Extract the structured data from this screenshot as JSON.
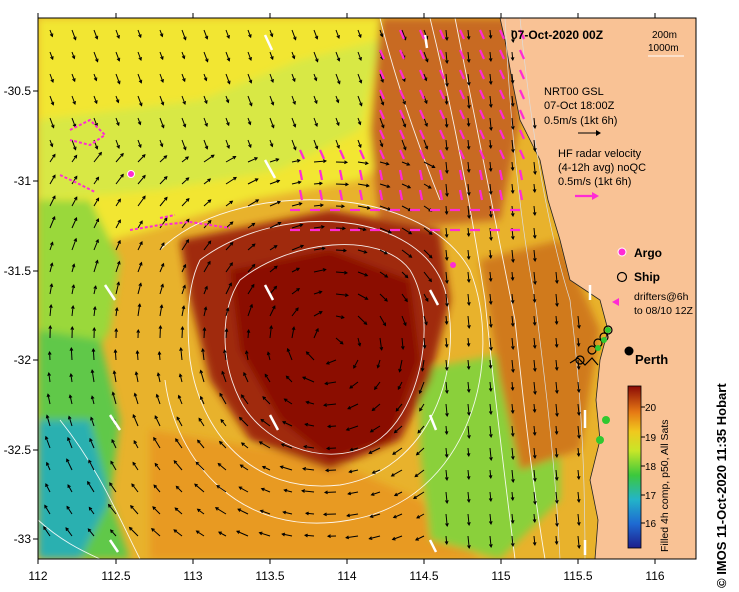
{
  "map": {
    "title": "07-Oct-2020 00Z",
    "x_ticks": [
      "112",
      "112.5",
      "113",
      "113.5",
      "114",
      "114.5",
      "115",
      "115.5",
      "116"
    ],
    "y_ticks": [
      "-30.5",
      "-31",
      "-31.5",
      "-32",
      "-32.5",
      "-33"
    ],
    "isobath_labels": [
      "200m",
      "1000m"
    ],
    "city": "Perth",
    "vertical_caption": "© IMOS 11-Oct-2020 11:35 Hobart"
  },
  "legend": {
    "gsl_line1": "NRT00 GSL",
    "gsl_line2": "07-Oct 18:00Z",
    "gsl_line3": "0.5m/s (1kt 6h)",
    "hf_line1": "HF radar velocity",
    "hf_line2": "(4-12h avg) noQC",
    "hf_line3": "0.5m/s (1kt 6h)",
    "argo": "Argo",
    "ship": "Ship",
    "drifters_line1": "drifters@6h",
    "drifters_line2": "to 08/10 12Z"
  },
  "colorbar": {
    "label": "Filled 4h comp, p50, All Sats",
    "ticks": [
      "16",
      "17",
      "18",
      "19",
      "20"
    ]
  },
  "colors": {
    "land": "#f9c295",
    "hf_radar": "#ff2bd4",
    "gsl": "#000000",
    "warm_core": "#8b0a06",
    "contour": "#ffffff"
  }
}
